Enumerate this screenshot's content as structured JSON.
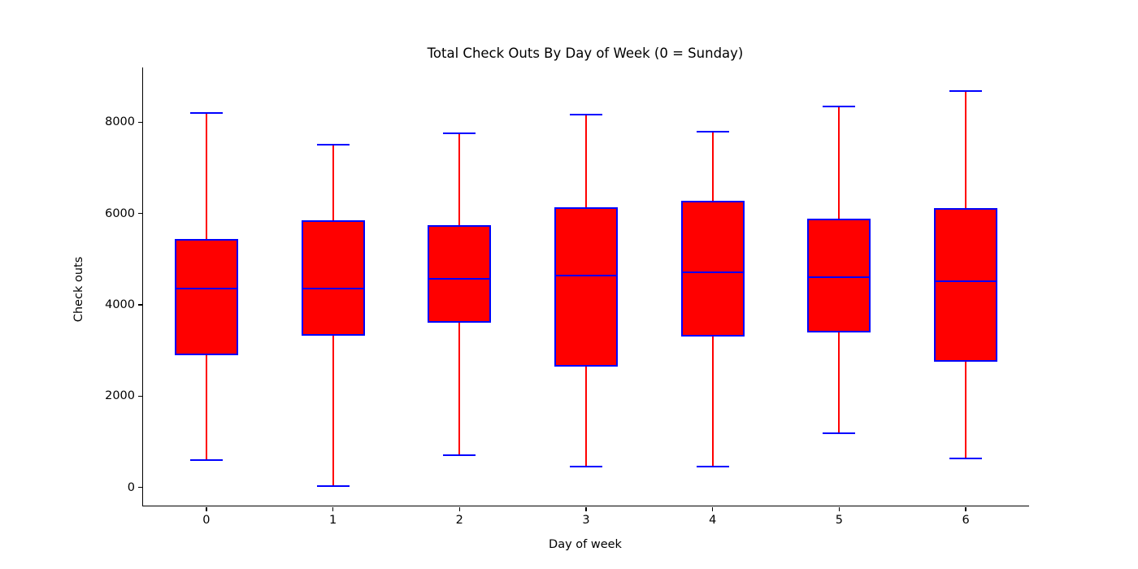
{
  "chart_data": {
    "type": "boxplot",
    "title": "Total Check Outs By Day of Week (0 = Sunday)",
    "xlabel": "Day of week",
    "ylabel": "Check outs",
    "categories": [
      "0",
      "1",
      "2",
      "3",
      "4",
      "5",
      "6"
    ],
    "series": [
      {
        "day": "0",
        "whisker_low": 600,
        "q1": 2900,
        "median": 4350,
        "q3": 5450,
        "whisker_high": 8210
      },
      {
        "day": "1",
        "whisker_low": 30,
        "q1": 3320,
        "median": 4360,
        "q3": 5850,
        "whisker_high": 7500
      },
      {
        "day": "2",
        "whisker_low": 700,
        "q1": 3600,
        "median": 4570,
        "q3": 5750,
        "whisker_high": 7750
      },
      {
        "day": "3",
        "whisker_low": 450,
        "q1": 2650,
        "median": 4640,
        "q3": 6140,
        "whisker_high": 8160
      },
      {
        "day": "4",
        "whisker_low": 450,
        "q1": 3300,
        "median": 4710,
        "q3": 6280,
        "whisker_high": 7790
      },
      {
        "day": "5",
        "whisker_low": 1190,
        "q1": 3390,
        "median": 4610,
        "q3": 5880,
        "whisker_high": 8350
      },
      {
        "day": "6",
        "whisker_low": 640,
        "q1": 2750,
        "median": 4520,
        "q3": 6120,
        "whisker_high": 8690
      }
    ],
    "yticks": [
      0,
      2000,
      4000,
      6000,
      8000
    ],
    "ylim": [
      -400,
      9200
    ],
    "grid": false,
    "legend": null,
    "colors": {
      "box_fill": "#ff0000",
      "box_edge": "#0000ff",
      "median": "#0000ff",
      "whisker": "#ff0000",
      "cap": "#0000ff",
      "axis": "#000000"
    }
  }
}
